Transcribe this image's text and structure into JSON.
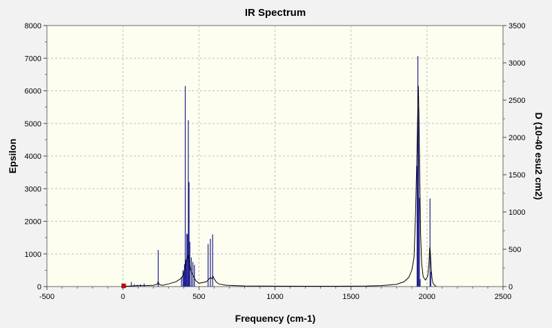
{
  "chart_data": {
    "type": "line",
    "title": "IR Spectrum",
    "xlabel": "Frequency (cm-1)",
    "ylabel_left": "Epsilon",
    "ylabel_right": "D (10-40 esu2 cm2)",
    "xlim": [
      -500,
      2500
    ],
    "ylim_left": [
      0,
      8000
    ],
    "ylim_right": [
      0,
      3500
    ],
    "x_ticks": [
      -500,
      0,
      500,
      1000,
      1500,
      2000,
      2500
    ],
    "y_ticks_left": [
      0,
      1000,
      2000,
      3000,
      4000,
      5000,
      6000,
      7000,
      8000
    ],
    "y_ticks_right": [
      0,
      500,
      1000,
      1500,
      2000,
      2500,
      3000,
      3500
    ],
    "grid": true,
    "colors": {
      "plot_background": "#fdfdf0",
      "frame_background": "#f2f2f2",
      "spectrum_line": "#000000",
      "stick_lines": "#1f1f8f",
      "marker": "#cc0000",
      "grid": "#bdbdbd"
    },
    "spectrum_curve": {
      "x": [
        -2,
        20,
        60,
        100,
        150,
        200,
        225,
        232,
        240,
        260,
        300,
        350,
        385,
        395,
        405,
        410,
        415,
        422,
        430,
        438,
        445,
        452,
        460,
        470,
        480,
        500,
        550,
        565,
        575,
        585,
        592,
        600,
        612,
        630,
        680,
        800,
        1000,
        1200,
        1400,
        1600,
        1700,
        1800,
        1850,
        1880,
        1900,
        1915,
        1925,
        1935,
        1940,
        1943,
        1947,
        1952,
        1958,
        1965,
        1975,
        1990,
        2005,
        2012,
        2018,
        2022,
        2027,
        2033,
        2040,
        2050,
        2060
      ],
      "y": [
        0,
        10,
        20,
        30,
        30,
        40,
        70,
        140,
        60,
        40,
        80,
        150,
        260,
        350,
        500,
        700,
        800,
        860,
        960,
        720,
        520,
        420,
        360,
        260,
        180,
        100,
        150,
        230,
        280,
        240,
        320,
        240,
        150,
        80,
        40,
        20,
        12,
        10,
        10,
        15,
        30,
        70,
        150,
        280,
        500,
        900,
        2300,
        4300,
        5600,
        6150,
        5200,
        3400,
        1600,
        700,
        300,
        200,
        320,
        650,
        1200,
        1050,
        600,
        250,
        100,
        40,
        10
      ]
    },
    "sticks": {
      "x": [
        55,
        75,
        95,
        115,
        140,
        232,
        385,
        395,
        400,
        405,
        410,
        415,
        420,
        425,
        430,
        435,
        440,
        450,
        460,
        470,
        560,
        575,
        590,
        1935,
        1940,
        1945,
        1950,
        1955,
        2020,
        2025
      ],
      "d": [
        60,
        30,
        25,
        30,
        40,
        490,
        130,
        220,
        180,
        300,
        2690,
        350,
        710,
        700,
        2230,
        1400,
        600,
        390,
        330,
        290,
        570,
        640,
        700,
        1620,
        3090,
        2400,
        1190,
        100,
        1180,
        200
      ]
    },
    "marker": {
      "x": 5,
      "y": 0
    }
  }
}
